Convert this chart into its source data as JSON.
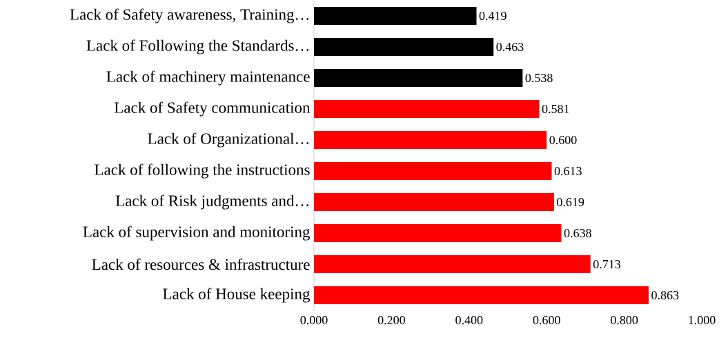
{
  "chart_data": {
    "type": "bar",
    "orientation": "horizontal",
    "categories": [
      "Lack of Safety awareness, Training…",
      "Lack of Following the Standards…",
      "Lack of machinery maintenance",
      "Lack of Safety communication",
      "Lack of Organizational…",
      "Lack of following the instructions",
      "Lack of Risk judgments and…",
      "Lack of supervision and monitoring",
      "Lack of resources & infrastructure",
      "Lack of House keeping"
    ],
    "values": [
      0.419,
      0.463,
      0.538,
      0.581,
      0.6,
      0.613,
      0.619,
      0.638,
      0.713,
      0.863
    ],
    "value_labels": [
      "0.419",
      "0.463",
      "0.538",
      "0.581",
      "0.600",
      "0.613",
      "0.619",
      "0.638",
      "0.713",
      "0.863"
    ],
    "colors": [
      "#000000",
      "#000000",
      "#000000",
      "#ff0000",
      "#ff0000",
      "#ff0000",
      "#ff0000",
      "#ff0000",
      "#ff0000",
      "#ff0000"
    ],
    "xlim": [
      0,
      1
    ],
    "xticks": [
      {
        "value": 0,
        "label": "0.000"
      },
      {
        "value": 0.2,
        "label": "0.200"
      },
      {
        "value": 0.4,
        "label": "0.400"
      },
      {
        "value": 0.6,
        "label": "0.600"
      },
      {
        "value": 0.8,
        "label": "0.800"
      },
      {
        "value": 1,
        "label": "1.000"
      }
    ]
  }
}
